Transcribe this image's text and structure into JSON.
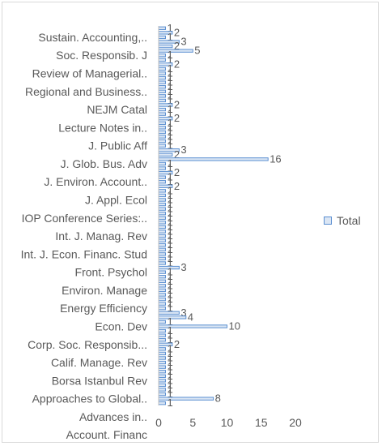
{
  "chart_data": {
    "type": "bar",
    "orientation": "horizontal",
    "title": "",
    "xlabel": "",
    "ylabel": "",
    "xlim": [
      0,
      20
    ],
    "x_ticks": [
      0,
      5,
      10,
      15,
      20
    ],
    "gridlines": false,
    "legend_position": "right",
    "series": [
      {
        "name": "Total",
        "color": "#5b8fd1",
        "fill": "#dbe6f4"
      }
    ],
    "categories_visible_labels": [
      "Sustain. Accounting,..",
      "Soc. Responsib. J",
      "Review of Managerial..",
      "Regional and Business..",
      "NEJM Catal",
      "Lecture Notes in..",
      "J. Public Aff",
      "J. Glob. Bus. Adv",
      "J. Environ. Account..",
      "J. Appl. Ecol",
      "IOP Conference Series:..",
      "Int. J. Manag. Rev",
      "Int. J. Econ. Financ. Stud",
      "Front. Psychol",
      "Environ. Manage",
      "Energy Efficiency",
      "Econ. Dev",
      "Corp. Soc. Responsib...",
      "Calif. Manage. Rev",
      "Borsa Istanbul Rev",
      "Approaches to Global..",
      "Advances in..",
      "Account. Financ"
    ],
    "values": [
      1,
      2,
      1,
      3,
      2,
      5,
      1,
      1,
      2,
      1,
      1,
      1,
      1,
      1,
      1,
      1,
      1,
      2,
      1,
      1,
      2,
      1,
      1,
      1,
      1,
      1,
      1,
      3,
      2,
      16,
      1,
      1,
      2,
      1,
      1,
      2,
      1,
      1,
      1,
      1,
      1,
      1,
      1,
      1,
      1,
      1,
      1,
      1,
      1,
      1,
      1,
      1,
      1,
      3,
      1,
      1,
      1,
      1,
      1,
      1,
      1,
      1,
      1,
      3,
      4,
      1,
      10,
      1,
      1,
      1,
      2,
      1,
      1,
      1,
      1,
      1,
      1,
      1,
      1,
      1,
      1,
      1,
      8,
      1
    ],
    "data_labels": [
      "1",
      "2",
      "1",
      "3",
      "2",
      "5",
      "1",
      "1",
      "2",
      "1",
      "1",
      "1",
      "1",
      "1",
      "1",
      "1",
      "1",
      "2",
      "1",
      "1",
      "2",
      "1",
      "1",
      "1",
      "1",
      "1",
      "1",
      "3",
      "2",
      "16",
      "1",
      "1",
      "2",
      "1",
      "1",
      "2",
      "1",
      "1",
      "1",
      "1",
      "1",
      "1",
      "1",
      "1",
      "1",
      "1",
      "1",
      "1",
      "1",
      "1",
      "1",
      "1",
      "1",
      "3",
      "1",
      "1",
      "1",
      "1",
      "1",
      "1",
      "1",
      "1",
      "1",
      "3",
      "4",
      "1",
      "10",
      "1",
      "1",
      "1",
      "2",
      "1",
      "1",
      "1",
      "1",
      "1",
      "1",
      "1",
      "1",
      "1",
      "1",
      "1",
      "8",
      "1"
    ]
  }
}
